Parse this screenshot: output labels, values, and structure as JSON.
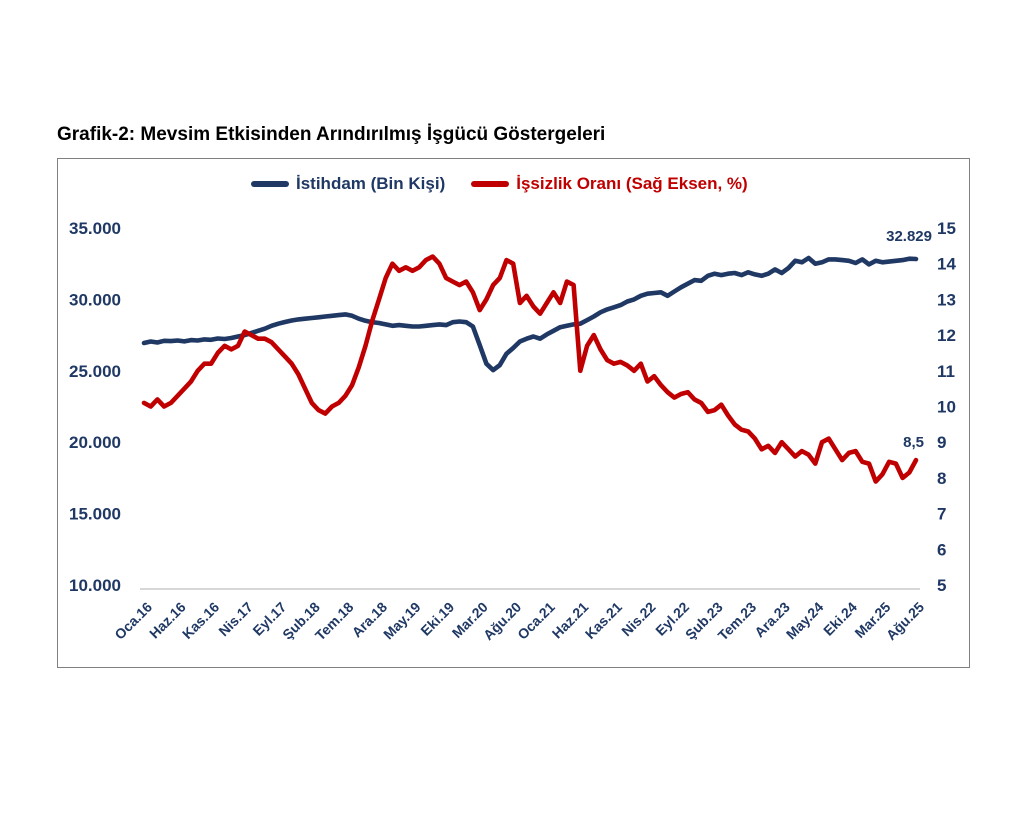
{
  "page": {
    "title": "Grafik-2: Mevsim Etkisinden Arındırılmış İşgücü Göstergeleri"
  },
  "colors": {
    "employment_navy": "#1F3864",
    "unemployment_red": "#C00000",
    "axis_label_navy": "#1F3864",
    "frame_border_gray": "#808080",
    "axis_line_gray": "#BFBFBF",
    "title_black": "#000000"
  },
  "legend": {
    "items": [
      {
        "label": "İstihdam (Bin Kişi)",
        "color": "#1F3864"
      },
      {
        "label": "İşsizlik Oranı (Sağ Eksen, %)",
        "color": "#C00000"
      }
    ]
  },
  "chart_data": {
    "type": "line",
    "title": "Grafik-2: Mevsim Etkisinden Arındırılmış İşgücü Göstergeleri",
    "x_description": "Monthly, Oca.16 (Jan 2016) through Ağu.25 (Aug 2025), 116 points, tick label every 5 months",
    "n_points": 116,
    "x_tick_every": 5,
    "x_tick_labels": [
      "Oca.16",
      "Haz.16",
      "Kas.16",
      "Nis.17",
      "Eyl.17",
      "Şub.18",
      "Tem.18",
      "Ara.18",
      "May.19",
      "Eki.19",
      "Mar.20",
      "Ağu.20",
      "Oca.21",
      "Haz.21",
      "Kas.21",
      "Nis.22",
      "Eyl.22",
      "Şub.23",
      "Tem.23",
      "Ara.23",
      "May.24",
      "Eki.24",
      "Mar.25",
      "Ağu.25"
    ],
    "grid": "x-axis baseline only",
    "legend_position": "top-center inside plot frame",
    "left_axis": {
      "title": "İstihdam (Bin Kişi)",
      "range": [
        10000,
        35000
      ],
      "tick_values": [
        35000,
        30000,
        25000,
        20000,
        15000,
        10000
      ],
      "tick_labels": [
        "35.000",
        "30.000",
        "25.000",
        "20.000",
        "15.000",
        "10.000"
      ]
    },
    "right_axis": {
      "title": "İşsizlik Oranı (%)",
      "range": [
        5,
        15
      ],
      "tick_values": [
        15,
        14,
        13,
        12,
        11,
        10,
        9,
        8,
        7,
        6,
        5
      ],
      "tick_labels": [
        "15",
        "14",
        "13",
        "12",
        "11",
        "10",
        "9",
        "8",
        "7",
        "6",
        "5"
      ]
    },
    "series": [
      {
        "name": "İstihdam (Bin Kişi)",
        "axis": "left",
        "color": "#1F3864",
        "end_label": "32.829",
        "values": [
          26950,
          27050,
          26980,
          27100,
          27080,
          27120,
          27060,
          27150,
          27120,
          27200,
          27170,
          27260,
          27230,
          27300,
          27400,
          27500,
          27650,
          27800,
          27950,
          28150,
          28300,
          28420,
          28520,
          28600,
          28650,
          28700,
          28750,
          28800,
          28850,
          28900,
          28950,
          28850,
          28650,
          28500,
          28400,
          28350,
          28250,
          28150,
          28200,
          28150,
          28100,
          28100,
          28150,
          28200,
          28250,
          28200,
          28400,
          28450,
          28400,
          28100,
          26800,
          25500,
          25050,
          25400,
          26200,
          26600,
          27050,
          27250,
          27400,
          27250,
          27550,
          27800,
          28050,
          28150,
          28250,
          28300,
          28550,
          28800,
          29100,
          29300,
          29450,
          29600,
          29850,
          30000,
          30250,
          30400,
          30450,
          30500,
          30250,
          30550,
          30850,
          31100,
          31350,
          31300,
          31650,
          31800,
          31700,
          31800,
          31850,
          31700,
          31900,
          31750,
          31650,
          31800,
          32100,
          31850,
          32200,
          32700,
          32600,
          32900,
          32500,
          32600,
          32800,
          32800,
          32750,
          32700,
          32550,
          32800,
          32450,
          32700,
          32600,
          32650,
          32700,
          32750,
          32850,
          32829
        ]
      },
      {
        "name": "İşsizlik Oranı (Sağ Eksen, %)",
        "axis": "right",
        "color": "#C00000",
        "end_label": "8,5",
        "values": [
          10.1,
          10.0,
          10.2,
          10.0,
          10.1,
          10.3,
          10.5,
          10.7,
          11.0,
          11.2,
          11.2,
          11.5,
          11.7,
          11.6,
          11.7,
          12.1,
          12.0,
          11.9,
          11.9,
          11.8,
          11.6,
          11.4,
          11.2,
          10.9,
          10.5,
          10.1,
          9.9,
          9.8,
          10.0,
          10.1,
          10.3,
          10.6,
          11.1,
          11.7,
          12.4,
          13.0,
          13.6,
          14.0,
          13.8,
          13.9,
          13.8,
          13.9,
          14.1,
          14.2,
          14.0,
          13.6,
          13.5,
          13.4,
          13.5,
          13.2,
          12.7,
          13.0,
          13.4,
          13.6,
          14.1,
          14.0,
          12.9,
          13.1,
          12.8,
          12.6,
          12.9,
          13.2,
          12.9,
          13.5,
          13.4,
          11.0,
          11.7,
          12.0,
          11.6,
          11.3,
          11.2,
          11.25,
          11.15,
          11.0,
          11.2,
          10.7,
          10.85,
          10.6,
          10.4,
          10.25,
          10.35,
          10.4,
          10.2,
          10.1,
          9.85,
          9.9,
          10.05,
          9.75,
          9.5,
          9.35,
          9.3,
          9.1,
          8.8,
          8.9,
          8.7,
          9.0,
          8.8,
          8.6,
          8.75,
          8.65,
          8.4,
          9.0,
          9.1,
          8.8,
          8.5,
          8.7,
          8.75,
          8.45,
          8.4,
          7.9,
          8.1,
          8.45,
          8.4,
          8.0,
          8.15,
          8.5
        ]
      }
    ]
  }
}
